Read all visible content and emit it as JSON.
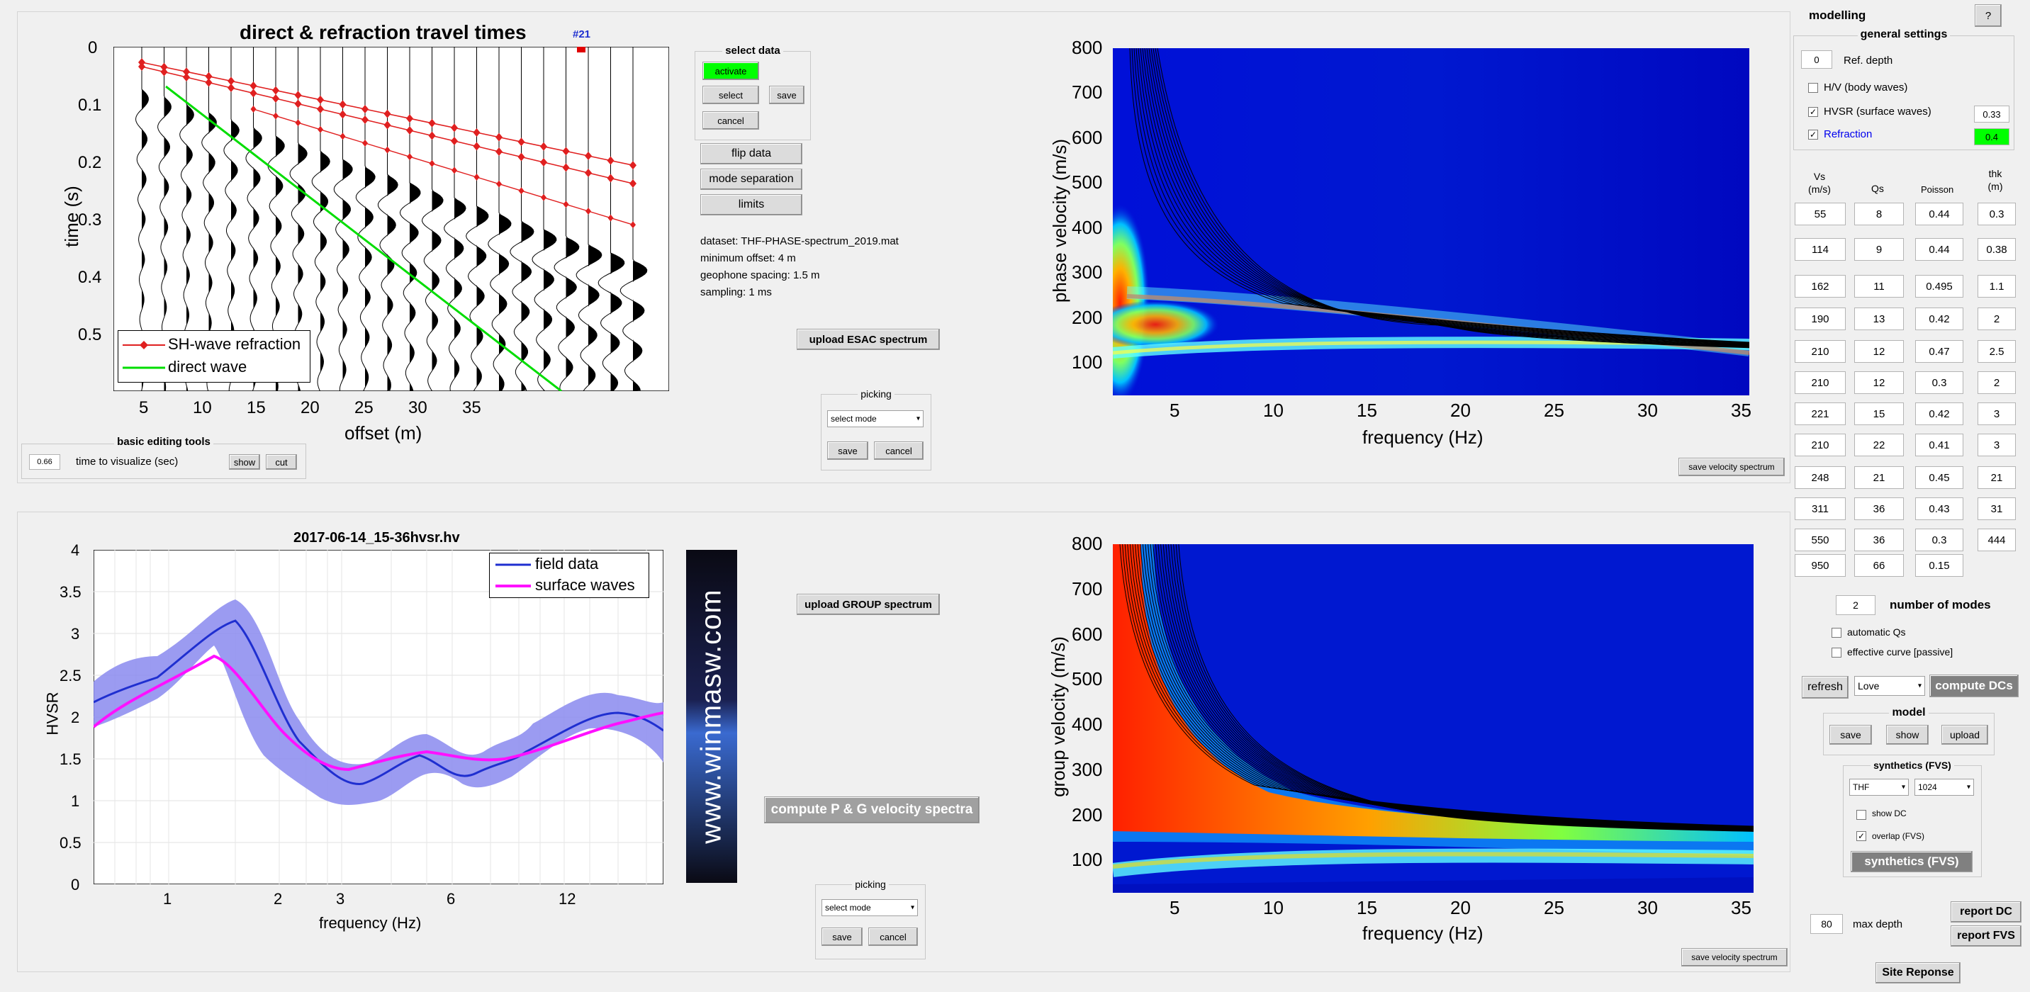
{
  "travel_times": {
    "title": "direct & refraction travel times",
    "marker_label": "#21",
    "xlabel": "offset (m)",
    "ylabel": "time (s)",
    "xticks": [
      "5",
      "10",
      "15",
      "20",
      "25",
      "30",
      "35"
    ],
    "yticks": [
      "0",
      "0.1",
      "0.2",
      "0.3",
      "0.4",
      "0.5"
    ],
    "legend": [
      "SH-wave refraction",
      "direct wave"
    ]
  },
  "select_data": {
    "title": "select data",
    "activate": "activate",
    "select": "select",
    "save": "save",
    "cancel": "cancel"
  },
  "buttons": {
    "flip": "flip data",
    "mode_sep": "mode separation",
    "limits": "limits",
    "upload_esac": "upload ESAC spectrum",
    "upload_group": "upload GROUP spectrum",
    "compute_pg": "compute P & G velocity spectra",
    "save_vel_1": "save velocity spectrum",
    "save_vel_2": "save velocity spectrum"
  },
  "dataset_info": [
    "dataset: THF-PHASE-spectrum_2019.mat",
    "minimum offset: 4 m",
    "geophone spacing: 1.5 m",
    "sampling: 1 ms"
  ],
  "picking_top": {
    "title": "picking",
    "select": "select mode",
    "save": "save",
    "cancel": "cancel"
  },
  "picking_bottom": {
    "title": "picking",
    "select": "select mode",
    "save": "save",
    "cancel": "cancel"
  },
  "basic_tools": {
    "title": "basic editing tools",
    "value": "0.66",
    "label": "time to visualize (sec)",
    "show": "show",
    "cut": "cut"
  },
  "phase_spectrum": {
    "xlabel": "frequency (Hz)",
    "ylabel": "phase velocity (m/s)",
    "xticks": [
      "5",
      "10",
      "15",
      "20",
      "25",
      "30",
      "35"
    ],
    "yticks": [
      "800",
      "700",
      "600",
      "500",
      "400",
      "300",
      "200",
      "100"
    ]
  },
  "group_spectrum": {
    "xlabel": "frequency (Hz)",
    "ylabel": "group velocity (m/s)",
    "xticks": [
      "5",
      "10",
      "15",
      "20",
      "25",
      "30",
      "35"
    ],
    "yticks": [
      "800",
      "700",
      "600",
      "500",
      "400",
      "300",
      "200",
      "100"
    ]
  },
  "hvsr_plot": {
    "title": "2017-06-14_15-36hvsr.hv",
    "xlabel": "frequency (Hz)",
    "ylabel": "HVSR",
    "xticks": [
      "1",
      "2",
      "3",
      "6",
      "12"
    ],
    "yticks": [
      "4",
      "3.5",
      "3",
      "2.5",
      "2",
      "1.5",
      "1",
      "0.5",
      "0"
    ],
    "legend": [
      "field data",
      "surface waves"
    ]
  },
  "watermark": "www.winmasw.com",
  "modelling": {
    "title": "modelling",
    "help": "?",
    "general_settings": "general settings",
    "ref_depth_value": "0",
    "ref_depth_label": "Ref. depth",
    "hv_body": "H/V (body waves)",
    "hvsr_surface": "HVSR (surface waves)",
    "hvsr_surface_value": "0.33",
    "refraction": "Refraction",
    "refraction_value": "0.4",
    "col_vs": "Vs (m/s)",
    "col_qs": "Qs",
    "col_poisson": "Poisson",
    "col_thk": "thk (m)",
    "layers": [
      [
        "55",
        "8",
        "0.44",
        "0.3"
      ],
      [
        "114",
        "9",
        "0.44",
        "0.38"
      ],
      [
        "162",
        "11",
        "0.495",
        "1.1"
      ],
      [
        "190",
        "13",
        "0.42",
        "2"
      ],
      [
        "210",
        "12",
        "0.47",
        "2.5"
      ],
      [
        "210",
        "12",
        "0.3",
        "2"
      ],
      [
        "221",
        "15",
        "0.42",
        "3"
      ],
      [
        "210",
        "22",
        "0.41",
        "3"
      ],
      [
        "248",
        "21",
        "0.45",
        "21"
      ],
      [
        "311",
        "36",
        "0.43",
        "31"
      ],
      [
        "550",
        "36",
        "0.3",
        "444"
      ],
      [
        "950",
        "66",
        "0.15",
        ""
      ]
    ],
    "num_modes_value": "2",
    "num_modes_label": "number of modes",
    "auto_qs": "automatic Qs",
    "effective_curve": "effective curve [passive]",
    "refresh": "refresh",
    "wave_type": "Love",
    "compute_dcs": "compute DCs",
    "model_title": "model",
    "model_save": "save",
    "model_show": "show",
    "model_upload": "upload",
    "synth_title": "synthetics (FVS)",
    "synth_sel1": "THF",
    "synth_sel2": "1024",
    "show_dc": "show DC",
    "overlap": "overlap (FVS)",
    "synth_btn": "synthetics (FVS)",
    "max_depth_value": "80",
    "max_depth_label": "max depth",
    "report_dc": "report DC",
    "report_fvs": "report FVS",
    "site_response": "Site Reponse"
  },
  "colors": {
    "refraction": "#e02020",
    "direct": "#00dd00",
    "field": "#1f2fd0",
    "field_band": "#8a8aee",
    "surface": "#ff10ff",
    "activate": "#00ff00"
  }
}
